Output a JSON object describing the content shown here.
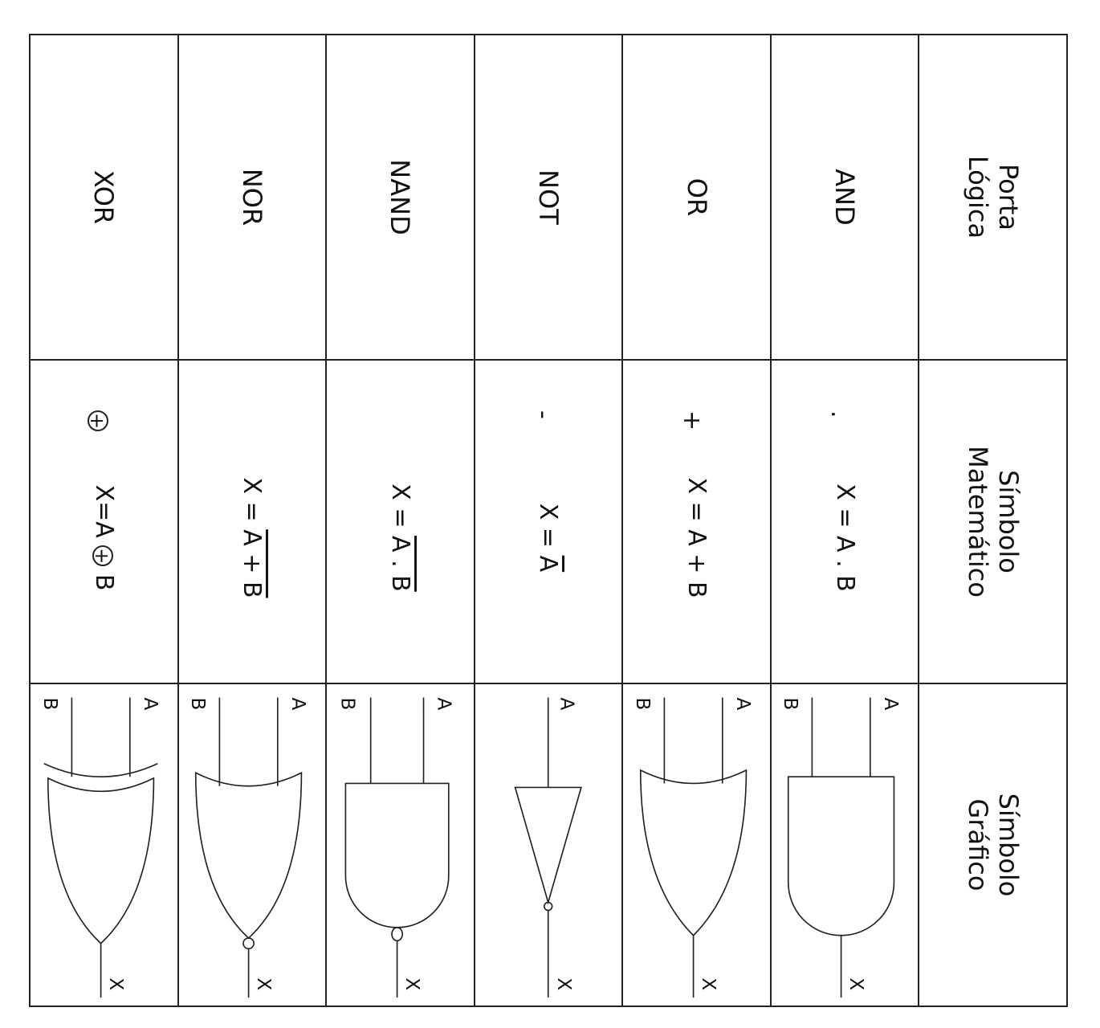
{
  "headers": {
    "gate_line1": "Porta",
    "gate_line2": "Lógica",
    "math_line1": "Símbolo",
    "math_line2": "Matemático",
    "graphic_line1": "Símbolo",
    "graphic_line2": "Gráfico"
  },
  "rows": [
    {
      "name": "AND",
      "symbol": ".",
      "expr_lhs": "X = ",
      "expr_ov": "",
      "expr_rhs": "A . B",
      "gate": "and-gate-icon"
    },
    {
      "name": "OR",
      "symbol": "+",
      "expr_lhs": "X = ",
      "expr_ov": "",
      "expr_rhs": "A + B",
      "gate": "or-gate-icon"
    },
    {
      "name": "NOT",
      "symbol": "-",
      "expr_lhs": "X = ",
      "expr_ov": "A",
      "expr_rhs": "",
      "gate": "not-gate-icon"
    },
    {
      "name": "NAND",
      "symbol": "",
      "expr_lhs": "X = ",
      "expr_ov": "A . B",
      "expr_rhs": "",
      "gate": "nand-gate-icon"
    },
    {
      "name": "NOR",
      "symbol": "",
      "expr_lhs": "X = ",
      "expr_ov": "A + B",
      "expr_rhs": "",
      "gate": "nor-gate-icon"
    },
    {
      "name": "XOR",
      "symbol": "+",
      "expr_lhs": "X=A ",
      "expr_ov": "",
      "expr_rhs": " B",
      "gate": "xor-gate-icon"
    }
  ],
  "labels": {
    "a": "A",
    "b": "B",
    "x": "X"
  }
}
